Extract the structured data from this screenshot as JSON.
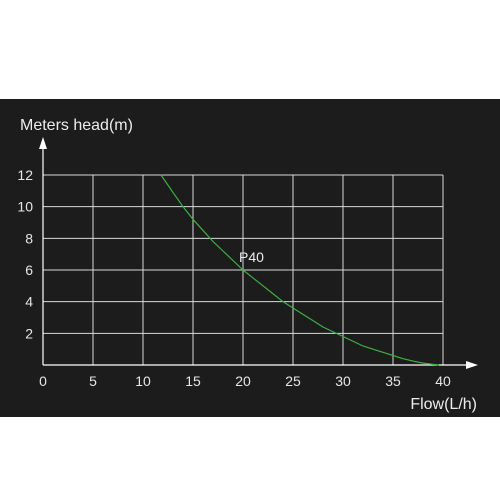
{
  "chart_data": {
    "type": "line",
    "ylabel": "Meters head(m)",
    "xlabel": "Flow(L/h)",
    "xlim": [
      0,
      40
    ],
    "ylim": [
      0,
      12
    ],
    "x_ticks": [
      "0",
      "5",
      "10",
      "15",
      "20",
      "25",
      "30",
      "35",
      "40"
    ],
    "y_ticks": [
      "2",
      "4",
      "6",
      "8",
      "10",
      "12"
    ],
    "grid": true,
    "colors": {
      "background": "#1c1c1c",
      "grid": "#d9d9d9",
      "axis": "#ffffff",
      "series": "#3cb043"
    },
    "series": [
      {
        "name": "P40",
        "x": [
          11.8,
          13,
          14,
          15,
          16,
          17,
          18,
          19,
          20,
          21,
          22,
          23,
          24,
          25,
          26,
          27,
          28,
          29,
          30,
          31,
          32,
          33,
          34,
          35,
          36,
          37,
          38,
          39,
          39.6
        ],
        "y": [
          12.0,
          10.9,
          10.0,
          9.2,
          8.5,
          7.8,
          7.2,
          6.6,
          6.0,
          5.5,
          5.0,
          4.5,
          4.0,
          3.6,
          3.2,
          2.8,
          2.4,
          2.1,
          1.8,
          1.5,
          1.2,
          1.0,
          0.8,
          0.6,
          0.4,
          0.25,
          0.12,
          0.04,
          0.0
        ]
      }
    ],
    "annotations": [
      {
        "text": "P40",
        "x": 19.6,
        "y": 6.5
      }
    ]
  }
}
